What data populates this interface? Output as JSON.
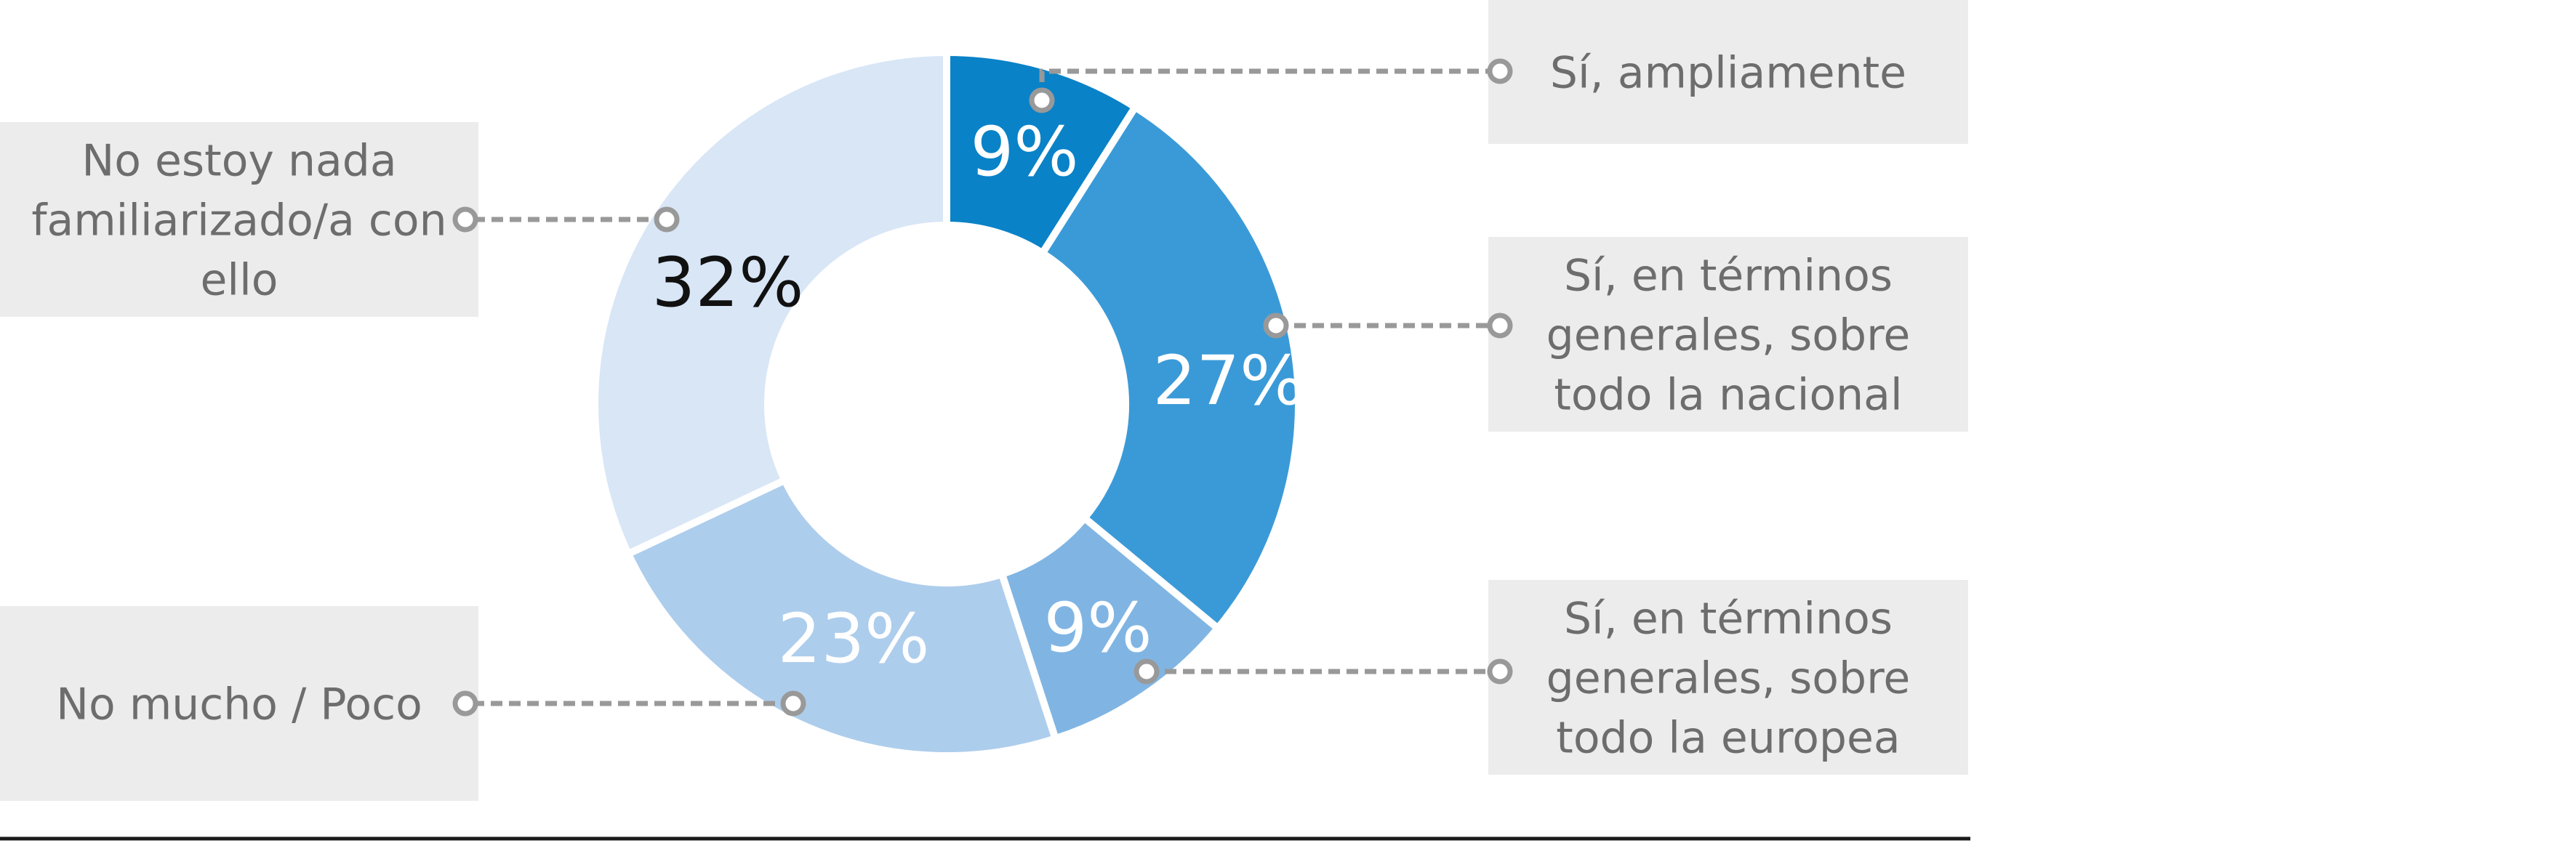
{
  "chart_data": {
    "type": "pie",
    "title": "",
    "legend": "callouts",
    "slices": [
      {
        "label": "Sí, ampliamente",
        "value": 9,
        "display": "9%",
        "color": "#0a82c7"
      },
      {
        "label": "Sí, en términos generales, sobre todo la nacional",
        "value": 27,
        "display": "27%",
        "color": "#3a9ad7"
      },
      {
        "label": "Sí, en términos generales, sobre todo la europea",
        "value": 9,
        "display": "9%",
        "color": "#80b5e3"
      },
      {
        "label": "No mucho / Poco",
        "value": 23,
        "display": "23%",
        "color": "#adcdec"
      },
      {
        "label": "No estoy nada familiarizado/a con ello",
        "value": 32,
        "display": "32%",
        "color": "#d8e6f6"
      }
    ]
  },
  "colors": {
    "label_box": "#ececec",
    "label_text": "#6d6d6d",
    "leader_line": "#999999",
    "dark_value_text": "#111111",
    "light_value_text": "#ffffff",
    "baseline": "#1a1a1a"
  }
}
